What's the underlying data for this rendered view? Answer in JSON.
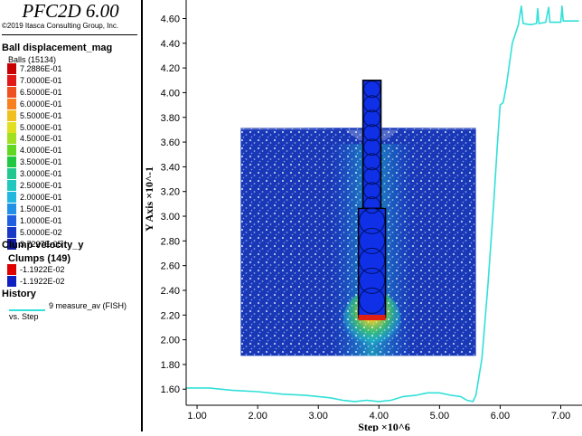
{
  "legend": {
    "app_title": "PFC2D 6.00",
    "copyright": "©2019 Itasca Consulting Group, Inc.",
    "ball_section": {
      "title": "Ball displacement_mag",
      "subtitle": "Balls (15134)",
      "items": [
        {
          "label": "7.2886E-01",
          "color": "#c80000"
        },
        {
          "label": "7.0000E-01",
          "color": "#e01818"
        },
        {
          "label": "6.5000E-01",
          "color": "#f05020"
        },
        {
          "label": "6.0000E-01",
          "color": "#f88020"
        },
        {
          "label": "5.5000E-01",
          "color": "#f0c020"
        },
        {
          "label": "5.0000E-01",
          "color": "#e0e020"
        },
        {
          "label": "4.5000E-01",
          "color": "#a0e020"
        },
        {
          "label": "4.0000E-01",
          "color": "#60d820"
        },
        {
          "label": "3.5000E-01",
          "color": "#20c840"
        },
        {
          "label": "3.0000E-01",
          "color": "#20c890"
        },
        {
          "label": "2.5000E-01",
          "color": "#20c8c0"
        },
        {
          "label": "2.0000E-01",
          "color": "#20b8e0"
        },
        {
          "label": "1.5000E-01",
          "color": "#2090e8"
        },
        {
          "label": "1.0000E-01",
          "color": "#2060e0"
        },
        {
          "label": "5.0000E-02",
          "color": "#1838c8"
        },
        {
          "label": "3.7227E-05",
          "color": "#101aa0"
        }
      ]
    },
    "clump_section": {
      "title": "Clump velocity_y",
      "subtitle": "Clumps (149)",
      "items": [
        {
          "label": "-1.1922E-02",
          "color": "#e00000"
        },
        {
          "label": "-1.1922E-02",
          "color": "#1020c0"
        }
      ]
    },
    "history_section": {
      "title": "History",
      "item_label": "9 measure_av (FISH)",
      "item_sub": "vs. Step",
      "line_color": "#31e0d8"
    }
  },
  "chart_data": {
    "type": "line",
    "xlabel": "Step ×10^6",
    "ylabel": "Y Axis ×10^-1",
    "x_ticks": [
      "1.00",
      "2.00",
      "3.00",
      "4.00",
      "5.00",
      "6.00",
      "7.00"
    ],
    "y_ticks": [
      "1.60",
      "1.80",
      "2.00",
      "2.20",
      "2.40",
      "2.60",
      "2.80",
      "3.00",
      "3.20",
      "3.40",
      "3.60",
      "3.80",
      "4.00",
      "4.20",
      "4.40",
      "4.60"
    ],
    "xlim": [
      0.82,
      7.35
    ],
    "ylim": [
      1.47,
      4.75
    ],
    "series": [
      {
        "color": "#31e0d8",
        "points": [
          [
            0.82,
            1.61
          ],
          [
            1.2,
            1.61
          ],
          [
            1.6,
            1.59
          ],
          [
            2.0,
            1.58
          ],
          [
            2.4,
            1.56
          ],
          [
            2.8,
            1.55
          ],
          [
            3.2,
            1.53
          ],
          [
            3.4,
            1.51
          ],
          [
            3.6,
            1.5
          ],
          [
            3.8,
            1.51
          ],
          [
            4.0,
            1.5
          ],
          [
            4.2,
            1.51
          ],
          [
            4.4,
            1.54
          ],
          [
            4.6,
            1.55
          ],
          [
            4.8,
            1.57
          ],
          [
            5.0,
            1.57
          ],
          [
            5.2,
            1.55
          ],
          [
            5.35,
            1.54
          ],
          [
            5.45,
            1.51
          ],
          [
            5.55,
            1.5
          ],
          [
            5.6,
            1.55
          ],
          [
            5.7,
            1.85
          ],
          [
            5.8,
            2.45
          ],
          [
            5.9,
            3.15
          ],
          [
            5.95,
            3.55
          ],
          [
            6.0,
            3.9
          ],
          [
            6.05,
            3.92
          ],
          [
            6.1,
            4.05
          ],
          [
            6.2,
            4.4
          ],
          [
            6.3,
            4.55
          ],
          [
            6.35,
            4.7
          ],
          [
            6.38,
            4.56
          ],
          [
            6.5,
            4.55
          ],
          [
            6.6,
            4.56
          ],
          [
            6.62,
            4.68
          ],
          [
            6.64,
            4.56
          ],
          [
            6.75,
            4.57
          ],
          [
            6.8,
            4.69
          ],
          [
            6.82,
            4.57
          ],
          [
            7.0,
            4.57
          ],
          [
            7.02,
            4.7
          ],
          [
            7.04,
            4.58
          ],
          [
            7.3,
            4.58
          ]
        ]
      }
    ],
    "bed": {
      "x_range": [
        1.72,
        5.6
      ],
      "y_range": [
        1.87,
        3.73
      ]
    },
    "probe": {
      "x_range": [
        3.73,
        4.04
      ],
      "y_range": [
        2.18,
        4.1
      ]
    }
  }
}
